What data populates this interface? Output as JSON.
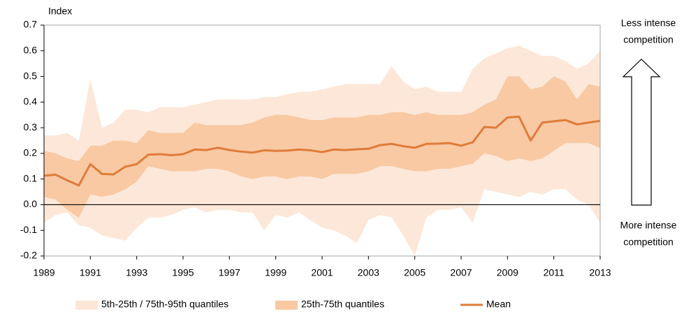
{
  "chart_data": {
    "type": "band-line",
    "ylabel": "Index",
    "x": [
      1989,
      1989.5,
      1990,
      1990.5,
      1991,
      1991.5,
      1992,
      1992.5,
      1993,
      1993.5,
      1994,
      1994.5,
      1995,
      1995.5,
      1996,
      1996.5,
      1997,
      1997.5,
      1998,
      1998.5,
      1999,
      1999.5,
      2000,
      2000.5,
      2001,
      2001.5,
      2002,
      2002.5,
      2003,
      2003.5,
      2004,
      2004.5,
      2005,
      2005.5,
      2006,
      2006.5,
      2007,
      2007.5,
      2008,
      2008.5,
      2009,
      2009.5,
      2010,
      2010.5,
      2011,
      2011.5,
      2012,
      2012.5,
      2013
    ],
    "xlim": [
      1989,
      2013
    ],
    "xticks": [
      1989,
      1991,
      1993,
      1995,
      1997,
      1999,
      2001,
      2003,
      2005,
      2007,
      2009,
      2011,
      2013
    ],
    "ylim": [
      -0.2,
      0.7
    ],
    "yticks": [
      -0.2,
      -0.1,
      {
        "value": 0,
        "label": "0.0"
      },
      0.1,
      0.2,
      0.3,
      0.4,
      0.5,
      0.6,
      0.7
    ],
    "bands": [
      {
        "name": "5th-25th / 75th-95th quantiles",
        "color": "#fde7d8",
        "lower": [
          -0.07,
          -0.04,
          -0.03,
          -0.08,
          -0.09,
          -0.12,
          -0.13,
          -0.14,
          -0.09,
          -0.05,
          -0.05,
          -0.04,
          -0.02,
          -0.01,
          -0.03,
          -0.02,
          -0.02,
          -0.03,
          -0.03,
          -0.1,
          -0.04,
          -0.05,
          -0.03,
          -0.06,
          -0.09,
          -0.1,
          -0.12,
          -0.15,
          -0.06,
          -0.04,
          -0.05,
          -0.12,
          -0.2,
          -0.05,
          -0.02,
          -0.02,
          -0.01,
          -0.07,
          0.06,
          0.05,
          0.04,
          0.03,
          0.05,
          0.04,
          0.06,
          0.06,
          0.02,
          0.0,
          -0.07
        ],
        "upper": [
          0.27,
          0.27,
          0.28,
          0.25,
          0.49,
          0.3,
          0.32,
          0.37,
          0.37,
          0.36,
          0.38,
          0.38,
          0.38,
          0.39,
          0.4,
          0.41,
          0.41,
          0.41,
          0.41,
          0.42,
          0.42,
          0.43,
          0.44,
          0.44,
          0.45,
          0.46,
          0.47,
          0.47,
          0.47,
          0.47,
          0.54,
          0.48,
          0.45,
          0.46,
          0.44,
          0.44,
          0.44,
          0.53,
          0.57,
          0.59,
          0.61,
          0.62,
          0.6,
          0.58,
          0.58,
          0.56,
          0.53,
          0.55,
          0.6
        ]
      },
      {
        "name": "25th-75th quantiles",
        "color": "#f8c9a3",
        "lower": [
          0.03,
          0.02,
          -0.02,
          -0.05,
          0.04,
          0.03,
          0.04,
          0.06,
          0.09,
          0.15,
          0.14,
          0.13,
          0.13,
          0.13,
          0.14,
          0.14,
          0.13,
          0.11,
          0.1,
          0.11,
          0.11,
          0.1,
          0.11,
          0.11,
          0.1,
          0.12,
          0.12,
          0.12,
          0.13,
          0.15,
          0.15,
          0.14,
          0.13,
          0.13,
          0.14,
          0.14,
          0.15,
          0.16,
          0.2,
          0.19,
          0.17,
          0.18,
          0.17,
          0.18,
          0.21,
          0.24,
          0.24,
          0.24,
          0.22
        ],
        "upper": [
          0.21,
          0.2,
          0.18,
          0.17,
          0.23,
          0.23,
          0.25,
          0.25,
          0.24,
          0.29,
          0.28,
          0.28,
          0.28,
          0.32,
          0.31,
          0.31,
          0.31,
          0.31,
          0.32,
          0.34,
          0.35,
          0.35,
          0.34,
          0.33,
          0.33,
          0.34,
          0.34,
          0.34,
          0.35,
          0.35,
          0.36,
          0.36,
          0.35,
          0.36,
          0.35,
          0.35,
          0.35,
          0.36,
          0.39,
          0.41,
          0.5,
          0.5,
          0.45,
          0.46,
          0.5,
          0.48,
          0.41,
          0.47,
          0.46
        ]
      }
    ],
    "series": [
      {
        "name": "Mean",
        "color": "#e07b39",
        "values": [
          0.113,
          0.117,
          0.095,
          0.075,
          0.158,
          0.12,
          0.118,
          0.148,
          0.158,
          0.195,
          0.197,
          0.193,
          0.197,
          0.215,
          0.213,
          0.222,
          0.213,
          0.207,
          0.203,
          0.212,
          0.21,
          0.211,
          0.215,
          0.212,
          0.205,
          0.215,
          0.213,
          0.216,
          0.218,
          0.232,
          0.237,
          0.228,
          0.222,
          0.237,
          0.238,
          0.24,
          0.23,
          0.243,
          0.303,
          0.3,
          0.34,
          0.343,
          0.25,
          0.32,
          0.325,
          0.33,
          0.313,
          0.32,
          0.327
        ]
      }
    ],
    "annotations": {
      "top": [
        "Less intense",
        "competition"
      ],
      "bottom": [
        "More intense",
        "competition"
      ]
    }
  }
}
